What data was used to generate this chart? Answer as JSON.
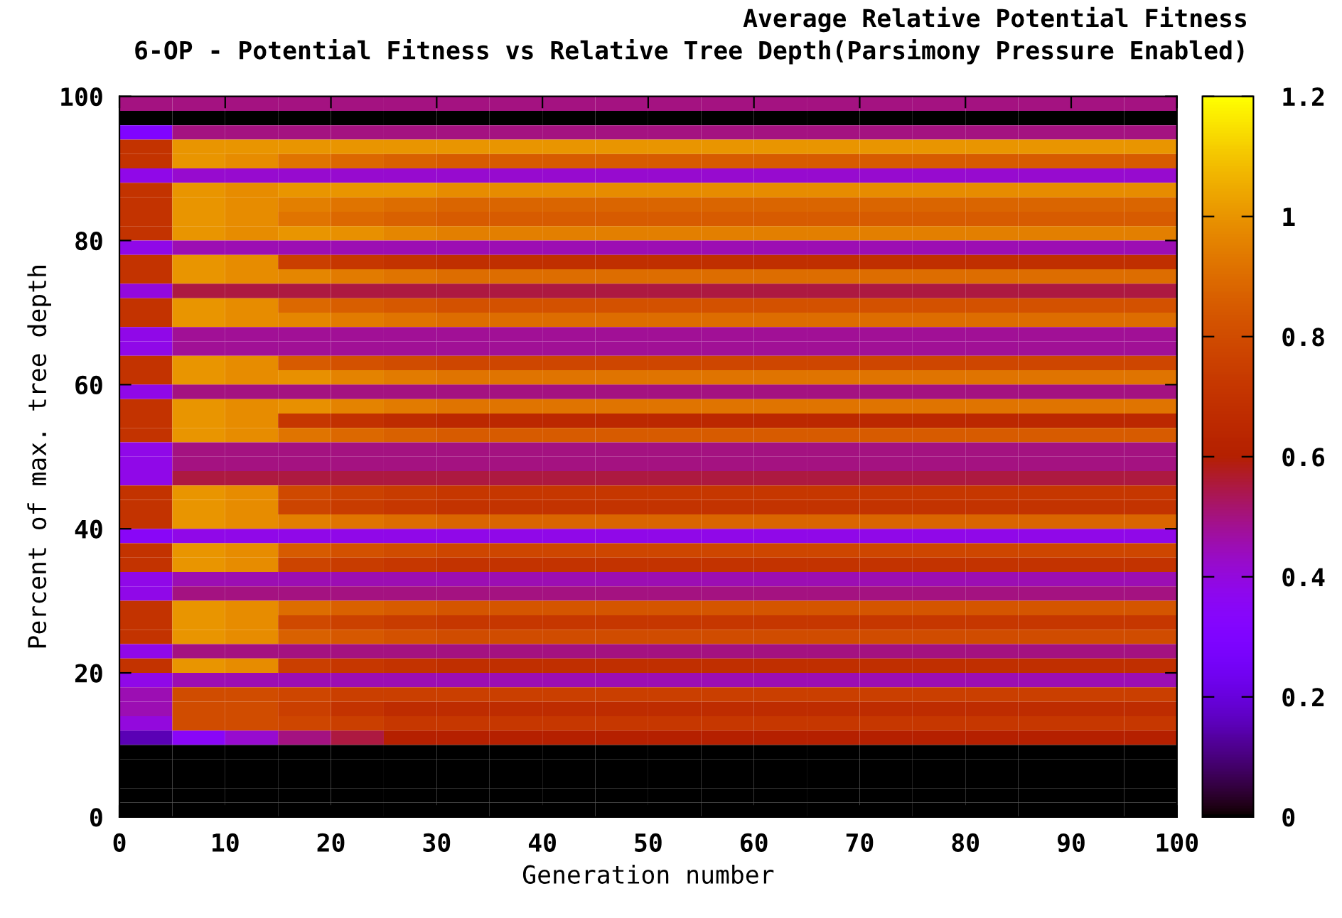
{
  "chart_data": {
    "type": "heatmap",
    "title": "6-OP - Potential Fitness vs Relative Tree Depth(Parsimony Pressure Enabled)",
    "annotations": [
      "Average Relative Potential Fitness"
    ],
    "xlabel": "Generation number",
    "ylabel": "Percent of max. tree depth",
    "xlim": [
      0,
      100
    ],
    "ylim": [
      0,
      100
    ],
    "xticks": [
      0,
      10,
      20,
      30,
      40,
      50,
      60,
      70,
      80,
      90,
      100
    ],
    "yticks": [
      0,
      20,
      40,
      60,
      80,
      100
    ],
    "clim": [
      0,
      1.2
    ],
    "cticks": [
      0,
      0.2,
      0.4,
      0.6,
      0.8,
      1,
      1.2
    ],
    "cells": [
      [
        0.5,
        0.5,
        0.5,
        0.5,
        0.5,
        0.5,
        0.5,
        0.5,
        0.5,
        0.5,
        0.5,
        0.5,
        0.5,
        0.5,
        0.5,
        0.5,
        0.5,
        0.5,
        0.5,
        0.5
      ],
      [
        0,
        0,
        0,
        0,
        0,
        0,
        0,
        0,
        0,
        0,
        0,
        0,
        0,
        0,
        0,
        0,
        0,
        0,
        0,
        0
      ],
      [
        0.3,
        0.5,
        0.5,
        0.5,
        0.5,
        0.5,
        0.5,
        0.5,
        0.5,
        0.5,
        0.5,
        0.5,
        0.5,
        0.5,
        0.5,
        0.5,
        0.5,
        0.5,
        0.5,
        0.5
      ],
      [
        0.7,
        1,
        1,
        1,
        1,
        1,
        1,
        1,
        1,
        1,
        1,
        1,
        1,
        1,
        1,
        1,
        1,
        1,
        1,
        1
      ],
      [
        0.7,
        1,
        0.98,
        0.92,
        0.89,
        0.87,
        0.85,
        0.85,
        0.85,
        0.85,
        0.85,
        0.85,
        0.85,
        0.85,
        0.85,
        0.85,
        0.85,
        0.85,
        0.85,
        0.85
      ],
      [
        0.38,
        0.42,
        0.42,
        0.42,
        0.42,
        0.42,
        0.42,
        0.42,
        0.42,
        0.42,
        0.42,
        0.42,
        0.42,
        0.42,
        0.42,
        0.42,
        0.42,
        0.42,
        0.42,
        0.42
      ],
      [
        0.7,
        1,
        0.98,
        1,
        1,
        1,
        0.98,
        0.98,
        0.98,
        0.98,
        0.98,
        0.98,
        0.98,
        0.98,
        0.98,
        0.98,
        0.98,
        0.98,
        0.98,
        0.98
      ],
      [
        0.7,
        1,
        0.98,
        0.95,
        0.92,
        0.9,
        0.88,
        0.88,
        0.88,
        0.88,
        0.88,
        0.88,
        0.88,
        0.88,
        0.88,
        0.88,
        0.88,
        0.88,
        0.88,
        0.88
      ],
      [
        0.7,
        1,
        0.98,
        0.92,
        0.89,
        0.87,
        0.85,
        0.85,
        0.85,
        0.85,
        0.85,
        0.85,
        0.85,
        0.85,
        0.85,
        0.85,
        0.85,
        0.85,
        0.85,
        0.85
      ],
      [
        0.7,
        1,
        0.98,
        1,
        0.99,
        0.97,
        0.95,
        0.95,
        0.95,
        0.95,
        0.95,
        0.95,
        0.95,
        0.95,
        0.95,
        0.95,
        0.95,
        0.95,
        0.95,
        0.95
      ],
      [
        0.38,
        0.45,
        0.45,
        0.45,
        0.45,
        0.45,
        0.45,
        0.45,
        0.45,
        0.45,
        0.45,
        0.45,
        0.45,
        0.45,
        0.45,
        0.45,
        0.45,
        0.45,
        0.45,
        0.45
      ],
      [
        0.7,
        1,
        0.98,
        0.75,
        0.72,
        0.7,
        0.68,
        0.68,
        0.68,
        0.68,
        0.68,
        0.68,
        0.68,
        0.68,
        0.68,
        0.68,
        0.68,
        0.68,
        0.68,
        0.68
      ],
      [
        0.7,
        1,
        0.98,
        0.97,
        0.94,
        0.92,
        0.9,
        0.9,
        0.9,
        0.9,
        0.9,
        0.9,
        0.9,
        0.9,
        0.9,
        0.9,
        0.9,
        0.9,
        0.9,
        0.9
      ],
      [
        0.4,
        0.55,
        0.55,
        0.55,
        0.55,
        0.55,
        0.55,
        0.55,
        0.55,
        0.55,
        0.55,
        0.55,
        0.55,
        0.55,
        0.55,
        0.55,
        0.55,
        0.55,
        0.55,
        0.55
      ],
      [
        0.7,
        1,
        0.98,
        0.89,
        0.86,
        0.84,
        0.82,
        0.82,
        0.82,
        0.82,
        0.82,
        0.82,
        0.82,
        0.82,
        0.82,
        0.82,
        0.82,
        0.82,
        0.82,
        0.82
      ],
      [
        0.7,
        1,
        0.98,
        0.97,
        0.94,
        0.92,
        0.9,
        0.9,
        0.9,
        0.9,
        0.9,
        0.9,
        0.9,
        0.9,
        0.9,
        0.9,
        0.9,
        0.9,
        0.9,
        0.9
      ],
      [
        0.38,
        0.48,
        0.48,
        0.48,
        0.48,
        0.48,
        0.48,
        0.48,
        0.48,
        0.48,
        0.48,
        0.48,
        0.48,
        0.48,
        0.48,
        0.48,
        0.48,
        0.48,
        0.48,
        0.48
      ],
      [
        0.38,
        0.48,
        0.48,
        0.48,
        0.48,
        0.48,
        0.48,
        0.48,
        0.48,
        0.48,
        0.48,
        0.48,
        0.48,
        0.48,
        0.48,
        0.48,
        0.48,
        0.48,
        0.48,
        0.48
      ],
      [
        0.7,
        1,
        0.98,
        0.85,
        0.82,
        0.8,
        0.78,
        0.78,
        0.78,
        0.78,
        0.78,
        0.78,
        0.78,
        0.78,
        0.78,
        0.78,
        0.78,
        0.78,
        0.78,
        0.78
      ],
      [
        0.7,
        1,
        0.98,
        0.99,
        0.96,
        0.94,
        0.92,
        0.92,
        0.92,
        0.92,
        0.92,
        0.92,
        0.92,
        0.92,
        0.92,
        0.92,
        0.92,
        0.92,
        0.92,
        0.92
      ],
      [
        0.38,
        0.5,
        0.5,
        0.5,
        0.5,
        0.5,
        0.5,
        0.5,
        0.5,
        0.5,
        0.5,
        0.5,
        0.5,
        0.5,
        0.5,
        0.5,
        0.5,
        0.5,
        0.5,
        0.5
      ],
      [
        0.7,
        1,
        0.98,
        0.99,
        0.96,
        0.94,
        0.92,
        0.92,
        0.92,
        0.92,
        0.92,
        0.92,
        0.92,
        0.92,
        0.92,
        0.92,
        0.92,
        0.92,
        0.92,
        0.92
      ],
      [
        0.7,
        1,
        0.98,
        0.72,
        0.69,
        0.67,
        0.65,
        0.65,
        0.65,
        0.65,
        0.65,
        0.65,
        0.65,
        0.65,
        0.65,
        0.65,
        0.65,
        0.65,
        0.65,
        0.65
      ],
      [
        0.7,
        1,
        0.98,
        0.92,
        0.89,
        0.87,
        0.85,
        0.85,
        0.85,
        0.85,
        0.85,
        0.85,
        0.85,
        0.85,
        0.85,
        0.85,
        0.85,
        0.85,
        0.85,
        0.85
      ],
      [
        0.38,
        0.5,
        0.5,
        0.5,
        0.5,
        0.5,
        0.5,
        0.5,
        0.5,
        0.5,
        0.5,
        0.5,
        0.5,
        0.5,
        0.5,
        0.5,
        0.5,
        0.5,
        0.5,
        0.5
      ],
      [
        0.38,
        0.5,
        0.5,
        0.5,
        0.5,
        0.5,
        0.5,
        0.5,
        0.5,
        0.5,
        0.5,
        0.5,
        0.5,
        0.5,
        0.5,
        0.5,
        0.5,
        0.5,
        0.5,
        0.5
      ],
      [
        0.38,
        0.55,
        0.55,
        0.55,
        0.55,
        0.55,
        0.55,
        0.55,
        0.55,
        0.55,
        0.55,
        0.55,
        0.55,
        0.55,
        0.55,
        0.55,
        0.55,
        0.55,
        0.55,
        0.55
      ],
      [
        0.7,
        1,
        0.98,
        0.79,
        0.76,
        0.74,
        0.72,
        0.72,
        0.72,
        0.72,
        0.72,
        0.72,
        0.72,
        0.72,
        0.72,
        0.72,
        0.72,
        0.72,
        0.72,
        0.72
      ],
      [
        0.7,
        1,
        0.98,
        0.77,
        0.74,
        0.72,
        0.7,
        0.7,
        0.7,
        0.7,
        0.7,
        0.7,
        0.7,
        0.7,
        0.7,
        0.7,
        0.7,
        0.7,
        0.7,
        0.7
      ],
      [
        0.7,
        1,
        0.98,
        0.95,
        0.92,
        0.9,
        0.88,
        0.88,
        0.88,
        0.88,
        0.88,
        0.88,
        0.88,
        0.88,
        0.88,
        0.88,
        0.88,
        0.88,
        0.88,
        0.88
      ],
      [
        0.35,
        0.38,
        0.38,
        0.38,
        0.38,
        0.38,
        0.38,
        0.38,
        0.38,
        0.38,
        0.38,
        0.38,
        0.38,
        0.38,
        0.38,
        0.38,
        0.38,
        0.38,
        0.38,
        0.38
      ],
      [
        0.7,
        1,
        0.98,
        0.85,
        0.82,
        0.8,
        0.78,
        0.78,
        0.78,
        0.78,
        0.78,
        0.78,
        0.78,
        0.78,
        0.78,
        0.78,
        0.78,
        0.78,
        0.78,
        0.78
      ],
      [
        0.7,
        1,
        0.98,
        0.77,
        0.74,
        0.72,
        0.7,
        0.7,
        0.7,
        0.7,
        0.7,
        0.7,
        0.7,
        0.7,
        0.7,
        0.7,
        0.7,
        0.7,
        0.7,
        0.7
      ],
      [
        0.38,
        0.45,
        0.45,
        0.45,
        0.45,
        0.45,
        0.45,
        0.45,
        0.45,
        0.45,
        0.45,
        0.45,
        0.45,
        0.45,
        0.45,
        0.45,
        0.45,
        0.45,
        0.45,
        0.45
      ],
      [
        0.38,
        0.5,
        0.5,
        0.5,
        0.5,
        0.5,
        0.5,
        0.5,
        0.5,
        0.5,
        0.5,
        0.5,
        0.5,
        0.5,
        0.5,
        0.5,
        0.5,
        0.5,
        0.5,
        0.5
      ],
      [
        0.7,
        1,
        0.98,
        0.9,
        0.87,
        0.85,
        0.83,
        0.83,
        0.83,
        0.83,
        0.83,
        0.83,
        0.83,
        0.83,
        0.83,
        0.83,
        0.83,
        0.83,
        0.83,
        0.83
      ],
      [
        0.7,
        1,
        0.98,
        0.79,
        0.76,
        0.74,
        0.72,
        0.72,
        0.72,
        0.72,
        0.72,
        0.72,
        0.72,
        0.72,
        0.72,
        0.72,
        0.72,
        0.72,
        0.72,
        0.72
      ],
      [
        0.7,
        1,
        0.98,
        0.87,
        0.84,
        0.82,
        0.8,
        0.8,
        0.8,
        0.8,
        0.8,
        0.8,
        0.8,
        0.8,
        0.8,
        0.8,
        0.8,
        0.8,
        0.8,
        0.8
      ],
      [
        0.38,
        0.5,
        0.5,
        0.5,
        0.5,
        0.5,
        0.5,
        0.5,
        0.5,
        0.5,
        0.5,
        0.5,
        0.5,
        0.5,
        0.5,
        0.5,
        0.5,
        0.5,
        0.5,
        0.5
      ],
      [
        0.7,
        1,
        0.98,
        0.75,
        0.72,
        0.7,
        0.68,
        0.68,
        0.68,
        0.68,
        0.68,
        0.68,
        0.68,
        0.68,
        0.68,
        0.68,
        0.68,
        0.68,
        0.68,
        0.68
      ],
      [
        0.38,
        0.45,
        0.45,
        0.45,
        0.45,
        0.45,
        0.45,
        0.45,
        0.45,
        0.45,
        0.45,
        0.45,
        0.45,
        0.45,
        0.45,
        0.45,
        0.45,
        0.45,
        0.45,
        0.45
      ],
      [
        0.45,
        0.8,
        0.8,
        0.78,
        0.75,
        0.75,
        0.75,
        0.75,
        0.75,
        0.75,
        0.75,
        0.75,
        0.75,
        0.75,
        0.75,
        0.75,
        0.75,
        0.75,
        0.75,
        0.75
      ],
      [
        0.45,
        0.8,
        0.8,
        0.75,
        0.7,
        0.67,
        0.67,
        0.67,
        0.67,
        0.67,
        0.67,
        0.67,
        0.67,
        0.67,
        0.67,
        0.67,
        0.67,
        0.67,
        0.67,
        0.67
      ],
      [
        0.4,
        0.8,
        0.8,
        0.78,
        0.75,
        0.72,
        0.72,
        0.72,
        0.72,
        0.72,
        0.72,
        0.72,
        0.72,
        0.72,
        0.72,
        0.72,
        0.72,
        0.72,
        0.72,
        0.72
      ],
      [
        0.15,
        0.35,
        0.42,
        0.5,
        0.55,
        0.6,
        0.6,
        0.6,
        0.6,
        0.6,
        0.6,
        0.6,
        0.6,
        0.6,
        0.6,
        0.6,
        0.6,
        0.6,
        0.6,
        0.6
      ],
      [
        0,
        0,
        0,
        0,
        0,
        0,
        0,
        0,
        0,
        0,
        0,
        0,
        0,
        0,
        0,
        0,
        0,
        0,
        0,
        0
      ],
      [
        0,
        0,
        0,
        0,
        0,
        0,
        0,
        0,
        0,
        0,
        0,
        0,
        0,
        0,
        0,
        0,
        0,
        0,
        0,
        0
      ],
      [
        0,
        0,
        0,
        0,
        0,
        0,
        0,
        0,
        0,
        0,
        0,
        0,
        0,
        0,
        0,
        0,
        0,
        0,
        0,
        0
      ],
      [
        0,
        0,
        0,
        0,
        0,
        0,
        0,
        0,
        0,
        0,
        0,
        0,
        0,
        0,
        0,
        0,
        0,
        0,
        0,
        0
      ],
      [
        0,
        0,
        0,
        0,
        0,
        0,
        0,
        0,
        0,
        0,
        0,
        0,
        0,
        0,
        0,
        0,
        0,
        0,
        0,
        0
      ]
    ]
  }
}
